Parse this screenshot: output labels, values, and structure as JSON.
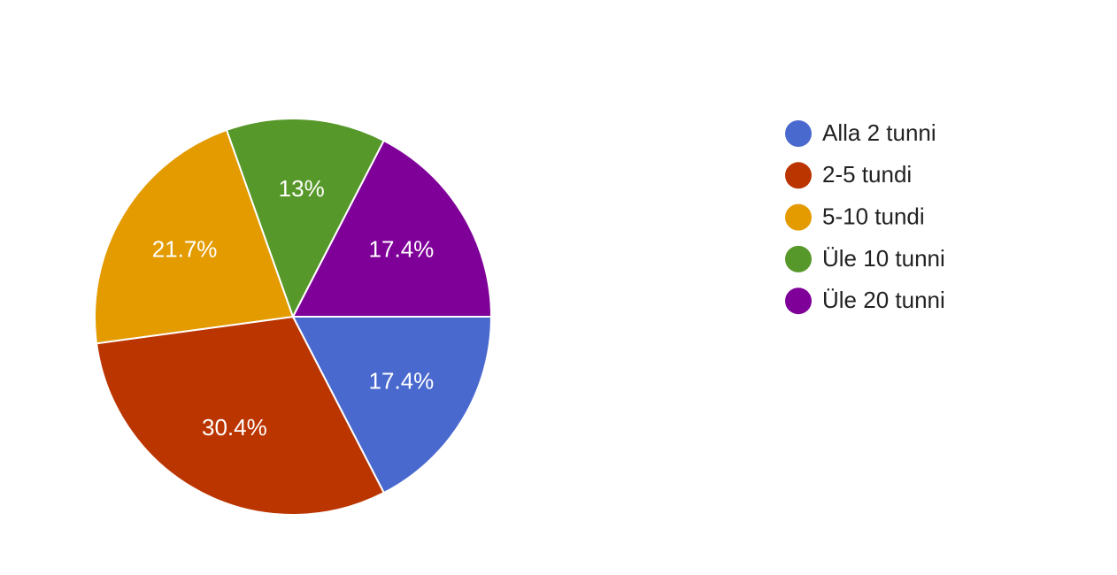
{
  "chart_data": {
    "type": "pie",
    "categories": [
      "Alla 2 tunni",
      "2-5 tundi",
      "5-10 tundi",
      "Üle 10 tunni",
      "Üle 20 tunni"
    ],
    "values": [
      17.4,
      30.4,
      21.7,
      13,
      17.4
    ],
    "value_labels": [
      "17.4%",
      "30.4%",
      "21.7%",
      "13%",
      "17.4%"
    ],
    "colors": [
      "#4a69cf",
      "#bb3500",
      "#e39b00",
      "#57982a",
      "#7f0099"
    ],
    "legend": "right"
  }
}
